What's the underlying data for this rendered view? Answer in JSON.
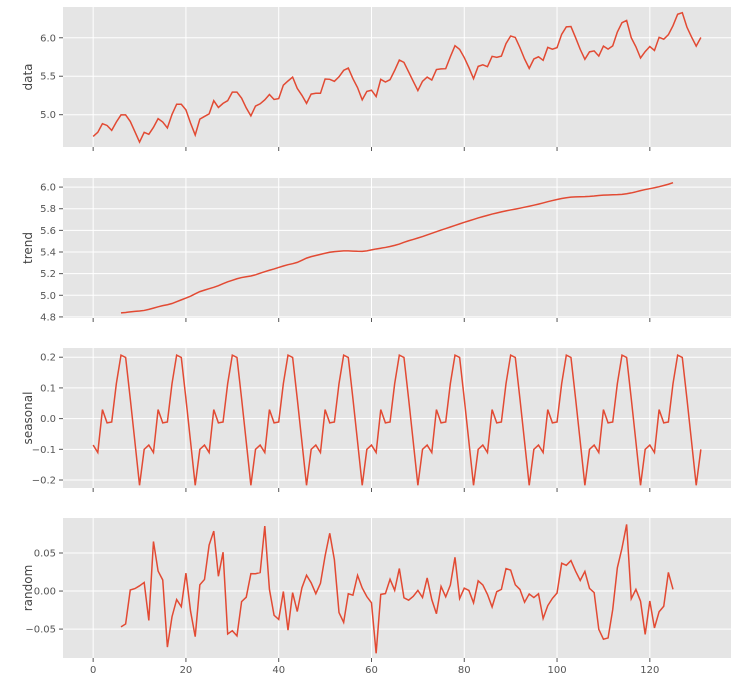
{
  "chart_data": {
    "type": "line",
    "title": "",
    "xlabel": "",
    "x_ticks": [
      0,
      20,
      40,
      60,
      80,
      100,
      120
    ],
    "xlim": [
      -6.5,
      137.5
    ],
    "grid": true,
    "color": "#e24a33",
    "decomposition": {
      "model": "additive",
      "period": 12
    },
    "data": [
      4.718,
      4.771,
      4.883,
      4.86,
      4.796,
      4.905,
      4.997,
      4.997,
      4.913,
      4.779,
      4.644,
      4.771,
      4.745,
      4.836,
      4.949,
      4.905,
      4.828,
      5.004,
      5.136,
      5.136,
      5.063,
      4.89,
      4.736,
      4.942,
      4.977,
      5.011,
      5.182,
      5.094,
      5.147,
      5.182,
      5.293,
      5.293,
      5.215,
      5.088,
      4.984,
      5.112,
      5.142,
      5.193,
      5.263,
      5.198,
      5.209,
      5.384,
      5.438,
      5.489,
      5.342,
      5.252,
      5.147,
      5.268,
      5.278,
      5.278,
      5.464,
      5.46,
      5.434,
      5.493,
      5.576,
      5.606,
      5.468,
      5.352,
      5.193,
      5.303,
      5.318,
      5.236,
      5.46,
      5.425,
      5.455,
      5.576,
      5.71,
      5.68,
      5.557,
      5.434,
      5.313,
      5.434,
      5.489,
      5.451,
      5.587,
      5.595,
      5.598,
      5.753,
      5.897,
      5.849,
      5.743,
      5.613,
      5.468,
      5.628,
      5.649,
      5.624,
      5.759,
      5.746,
      5.762,
      5.924,
      6.023,
      6.004,
      5.872,
      5.724,
      5.602,
      5.724,
      5.753,
      5.707,
      5.875,
      5.852,
      5.872,
      6.045,
      6.142,
      6.146,
      6.001,
      5.849,
      5.72,
      5.817,
      5.829,
      5.762,
      5.892,
      5.852,
      5.894,
      6.075,
      6.196,
      6.225,
      6.001,
      5.883,
      5.737,
      5.82,
      5.886,
      5.835,
      6.006,
      5.981,
      6.04,
      6.157,
      6.306,
      6.326,
      6.138,
      6.009,
      5.892,
      6.004
    ],
    "panels": [
      {
        "name": "data",
        "ylabel": "data",
        "ylim": [
          4.58,
          6.4
        ],
        "yticks": [
          5.0,
          5.5,
          6.0
        ],
        "tick_labels": [
          "5.0",
          "5.5",
          "6.0"
        ]
      },
      {
        "name": "trend",
        "ylabel": "trend",
        "ylim": [
          4.79,
          6.084
        ],
        "yticks": [
          4.8,
          5.0,
          5.2,
          5.4,
          5.6,
          5.8,
          6.0
        ],
        "tick_labels": [
          "4.8",
          "5.0",
          "5.2",
          "5.4",
          "5.6",
          "5.8",
          "6.0"
        ]
      },
      {
        "name": "seasonal",
        "ylabel": "seasonal",
        "ylim": [
          -0.226,
          0.23
        ],
        "yticks": [
          -0.2,
          -0.1,
          0.0,
          0.1,
          0.2
        ],
        "tick_labels": [
          "−0.2",
          "−0.1",
          "0.0",
          "0.1",
          "0.2"
        ]
      },
      {
        "name": "random",
        "ylabel": "random",
        "ylim": [
          -0.088,
          0.096
        ],
        "yticks": [
          -0.05,
          0.0,
          0.05
        ],
        "tick_labels": [
          "−0.05",
          "0.00",
          "0.05"
        ]
      }
    ]
  }
}
